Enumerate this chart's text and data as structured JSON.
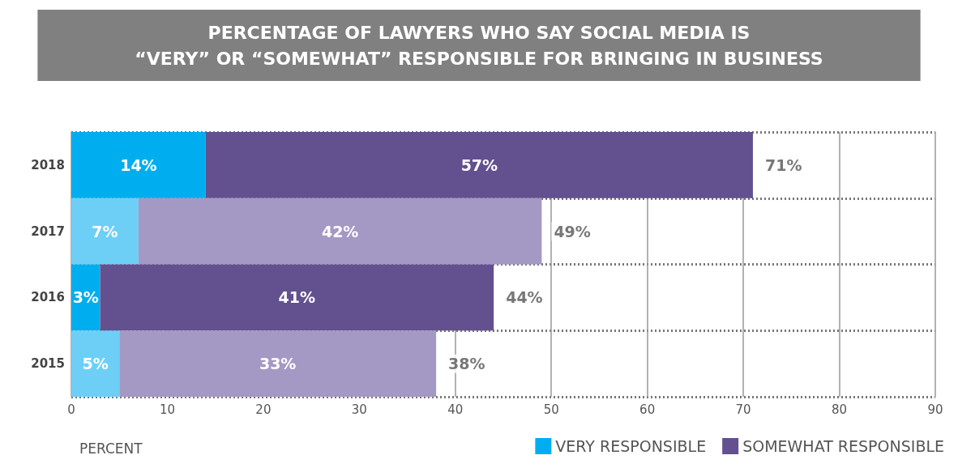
{
  "chart_data": {
    "type": "bar",
    "orientation": "horizontal",
    "stacked": true,
    "title": "PERCENTAGE OF LAWYERS WHO SAY SOCIAL MEDIA IS\n“VERY” OR “SOMEWHAT” RESPONSIBLE FOR BRINGING IN BUSINESS",
    "xlabel": "PERCENT",
    "categories": [
      "2018",
      "2017",
      "2016",
      "2015"
    ],
    "series": [
      {
        "name": "VERY RESPONSIBLE",
        "color": "#00aeef",
        "colors": [
          "#00aeef",
          "#6dcff6",
          "#00aeef",
          "#6dcff6"
        ],
        "values": [
          14,
          7,
          3,
          5
        ],
        "value_labels": [
          "14%",
          "7%",
          "3%",
          "5%"
        ]
      },
      {
        "name": "SOMEWHAT RESPONSIBLE",
        "color": "#62508f",
        "colors": [
          "#62508f",
          "#a498c4",
          "#62508f",
          "#a498c4"
        ],
        "values": [
          57,
          42,
          41,
          33
        ],
        "value_labels": [
          "57%",
          "42%",
          "41%",
          "33%"
        ]
      }
    ],
    "totals": [
      "71%",
      "49%",
      "44%",
      "38%"
    ],
    "xlim": [
      0,
      90
    ],
    "xticks": [
      0,
      10,
      20,
      30,
      40,
      50,
      60,
      70,
      80,
      90
    ],
    "grid": true,
    "legend": "bottom right"
  }
}
